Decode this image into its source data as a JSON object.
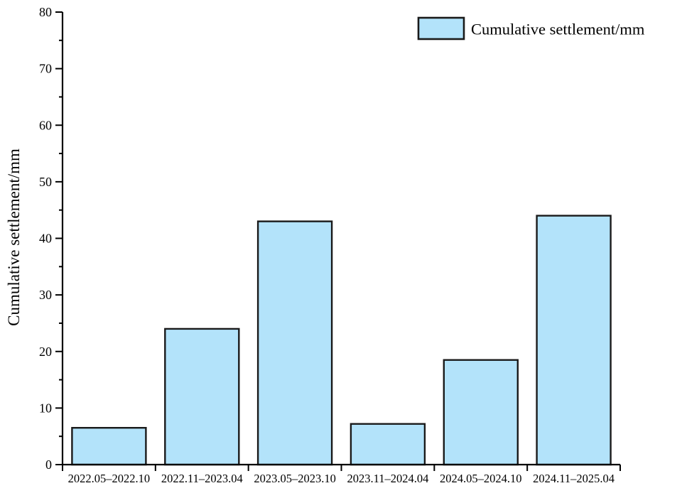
{
  "chart_data": {
    "type": "bar",
    "title": "",
    "xlabel": "",
    "ylabel": "Cumulative settlement/mm",
    "categories": [
      "2022.05–2022.10",
      "2022.11–2023.04",
      "2023.05–2023.10",
      "2023.11–2024.04",
      "2024.05–2024.10",
      "2024.11–2025.04"
    ],
    "series": [
      {
        "name": "Cumulative settlement/mm",
        "values": [
          6.5,
          24,
          43,
          7.2,
          18.5,
          44
        ]
      }
    ],
    "ylim": [
      0,
      80
    ],
    "y_ticks": [
      0,
      10,
      20,
      30,
      40,
      50,
      60,
      70,
      80
    ],
    "y_minor_ticks": [
      5,
      15,
      25,
      35,
      45,
      55,
      65,
      75
    ],
    "grid": false,
    "legend": {
      "label": "Cumulative settlement/mm",
      "position": "top-right"
    },
    "colors": {
      "bar_fill": "#B3E3FA",
      "bar_edge": "#1A1A1A",
      "axis": "#000000",
      "text": "#000000"
    }
  }
}
